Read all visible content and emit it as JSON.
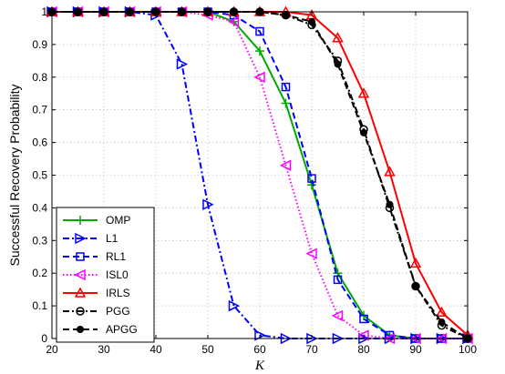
{
  "chart_data": {
    "type": "line",
    "xlabel": "K",
    "ylabel": "Successful Recovery Probability",
    "xlim": [
      20,
      100
    ],
    "ylim": [
      0,
      1
    ],
    "xticks": [
      20,
      30,
      40,
      50,
      60,
      70,
      80,
      90,
      100
    ],
    "xtick_labels": [
      "20",
      "30",
      "40",
      "50",
      "60",
      "70",
      "80",
      "90",
      "100"
    ],
    "yticks": [
      0,
      0.1,
      0.2,
      0.3,
      0.4,
      0.5,
      0.6,
      0.7,
      0.8,
      0.9,
      1
    ],
    "ytick_labels": [
      "0",
      "0.1",
      "0.2",
      "0.3",
      "0.4",
      "0.5",
      "0.6",
      "0.7",
      "0.8",
      "0.9",
      "1"
    ],
    "grid": true,
    "legend_position": "bottom-left",
    "x": [
      20,
      25,
      30,
      35,
      40,
      45,
      50,
      55,
      60,
      65,
      70,
      75,
      80,
      85,
      90,
      95,
      100
    ],
    "series": [
      {
        "name": "OMP",
        "color": "#00aa00",
        "dash": "solid",
        "marker": "plus",
        "values": [
          1,
          1,
          1,
          1,
          1,
          1,
          1,
          0.97,
          0.88,
          0.72,
          0.47,
          0.2,
          0.07,
          0.01,
          0,
          0,
          0
        ]
      },
      {
        "name": "L1",
        "color": "#0000ff",
        "dash": "dashdot",
        "marker": "triangle-right",
        "values": [
          1,
          1,
          1,
          1,
          0.99,
          0.84,
          0.41,
          0.1,
          0.01,
          0,
          0,
          0,
          0,
          0,
          0,
          0,
          0
        ]
      },
      {
        "name": "RL1",
        "color": "#0000ff",
        "dash": "dashed",
        "marker": "square",
        "values": [
          1,
          1,
          1,
          1,
          1,
          1,
          1,
          0.99,
          0.94,
          0.77,
          0.49,
          0.18,
          0.06,
          0.01,
          0,
          0,
          0
        ]
      },
      {
        "name": "ISL0",
        "color": "#ff00ff",
        "dash": "dotted",
        "marker": "triangle-left",
        "values": [
          1,
          1,
          1,
          1,
          1,
          1,
          0.99,
          0.97,
          0.8,
          0.53,
          0.26,
          0.07,
          0.01,
          0,
          0,
          0,
          0
        ]
      },
      {
        "name": "IRLS",
        "color": "#ff0000",
        "dash": "solid",
        "marker": "triangle-up",
        "values": [
          1,
          1,
          1,
          1,
          1,
          1,
          1,
          1,
          1,
          1,
          0.99,
          0.92,
          0.75,
          0.51,
          0.23,
          0.08,
          0.01
        ]
      },
      {
        "name": "PGG",
        "color": "#000000",
        "dash": "dashdot",
        "marker": "circle-open",
        "values": [
          1,
          1,
          1,
          1,
          1,
          1,
          1,
          1,
          1,
          0.99,
          0.96,
          0.85,
          0.64,
          0.4,
          0.16,
          0.04,
          0
        ]
      },
      {
        "name": "APGG",
        "color": "#000000",
        "dash": "dashed",
        "marker": "circle-filled",
        "values": [
          1,
          1,
          1,
          1,
          1,
          1,
          1,
          1,
          1,
          0.99,
          0.97,
          0.84,
          0.63,
          0.41,
          0.16,
          0.05,
          0
        ]
      }
    ]
  }
}
